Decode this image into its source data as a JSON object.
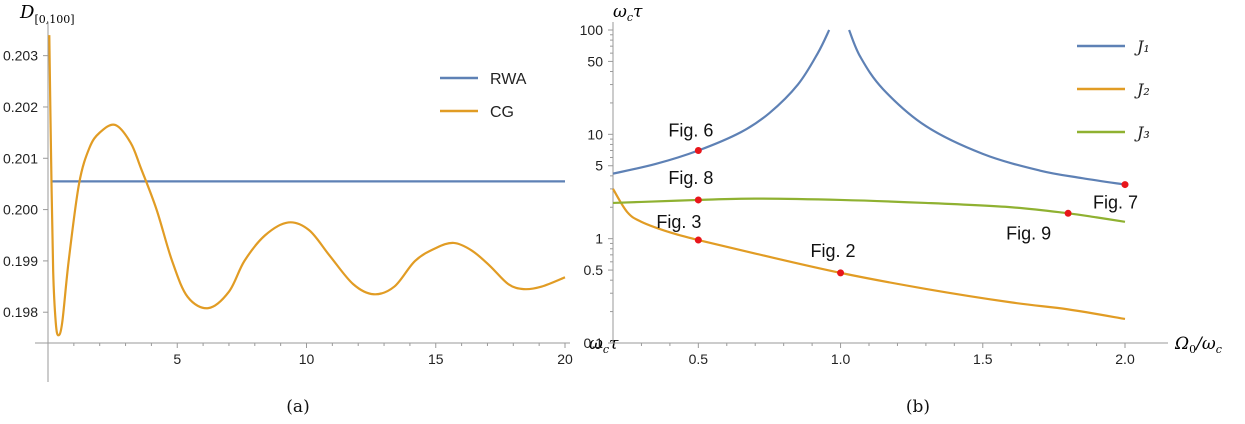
{
  "chart_data": [
    {
      "id": "a",
      "type": "line",
      "caption": "(a)",
      "ylabel_main": "D",
      "ylabel_sub": "[0,100]",
      "xlim": [
        0,
        20
      ],
      "ylim": [
        0.1974,
        0.2035
      ],
      "x_ticks": [
        5,
        10,
        15,
        20
      ],
      "x_tick_labels": [
        "5",
        "10",
        "15",
        "20"
      ],
      "y_ticks": [
        0.198,
        0.199,
        0.2,
        0.201,
        0.202,
        0.203
      ],
      "y_tick_labels": [
        "0.198",
        "0.199",
        "0.200",
        "0.201",
        "0.202",
        "0.203"
      ],
      "legend_position": "top-right",
      "series": [
        {
          "name": "RWA",
          "color": "#5e81b5",
          "points": [
            [
              0.15,
              0.20055
            ],
            [
              20,
              0.20055
            ]
          ]
        },
        {
          "name": "CG",
          "color": "#e19c24",
          "points": [
            [
              0.05,
              0.2034
            ],
            [
              0.12,
              0.201
            ],
            [
              0.2,
              0.1988
            ],
            [
              0.3,
              0.1978
            ],
            [
              0.4,
              0.19755
            ],
            [
              0.55,
              0.1978
            ],
            [
              0.8,
              0.199
            ],
            [
              1.2,
              0.2005
            ],
            [
              1.6,
              0.2012
            ],
            [
              2.0,
              0.2015
            ],
            [
              2.6,
              0.20165
            ],
            [
              3.2,
              0.2013
            ],
            [
              3.6,
              0.2008
            ],
            [
              4.2,
              0.2
            ],
            [
              4.8,
              0.199
            ],
            [
              5.4,
              0.1983
            ],
            [
              6.2,
              0.19808
            ],
            [
              7.0,
              0.1984
            ],
            [
              7.6,
              0.199
            ],
            [
              8.4,
              0.1995
            ],
            [
              9.3,
              0.19975
            ],
            [
              10.1,
              0.1996
            ],
            [
              10.9,
              0.1991
            ],
            [
              11.8,
              0.19855
            ],
            [
              12.6,
              0.19835
            ],
            [
              13.4,
              0.1985
            ],
            [
              14.2,
              0.199
            ],
            [
              15.0,
              0.19925
            ],
            [
              15.7,
              0.19935
            ],
            [
              16.4,
              0.1992
            ],
            [
              17.1,
              0.1989
            ],
            [
              17.8,
              0.19855
            ],
            [
              18.4,
              0.19845
            ],
            [
              19.1,
              0.1985
            ],
            [
              20.0,
              0.19868
            ]
          ]
        }
      ]
    },
    {
      "id": "b",
      "type": "line",
      "caption": "(b)",
      "ylabel_top": "ω_cτ",
      "ylabel_bottom": "ω_cτ",
      "xlabel": "Ω_0/ω_c",
      "yscale": "log",
      "xlim": [
        0.2,
        2.0
      ],
      "ylim": [
        0.1,
        100
      ],
      "x_ticks": [
        0.5,
        1.0,
        1.5,
        2.0
      ],
      "x_tick_labels": [
        "0.5",
        "1.0",
        "1.5",
        "2.0"
      ],
      "y_ticks": [
        0.1,
        0.5,
        1,
        5,
        10,
        50,
        100
      ],
      "y_tick_labels": [
        "0.1",
        "0.5",
        "1",
        "5",
        "10",
        "50",
        "100"
      ],
      "legend_position": "top-right",
      "series": [
        {
          "name": "J₁",
          "color": "#5e81b5",
          "segments": [
            [
              [
                0.2,
                4.2
              ],
              [
                0.35,
                5.2
              ],
              [
                0.5,
                7.0
              ],
              [
                0.65,
                10.5
              ],
              [
                0.75,
                16
              ],
              [
                0.85,
                30
              ],
              [
                0.92,
                60
              ],
              [
                0.96,
                100
              ]
            ],
            [
              [
                1.03,
                100
              ],
              [
                1.07,
                55
              ],
              [
                1.15,
                27
              ],
              [
                1.3,
                12
              ],
              [
                1.5,
                6.5
              ],
              [
                1.7,
                4.5
              ],
              [
                1.85,
                3.8
              ],
              [
                2.0,
                3.3
              ]
            ]
          ]
        },
        {
          "name": "J₂",
          "color": "#e19c24",
          "points": [
            [
              0.2,
              3.0
            ],
            [
              0.25,
              1.8
            ],
            [
              0.3,
              1.45
            ],
            [
              0.4,
              1.15
            ],
            [
              0.5,
              0.97
            ],
            [
              0.7,
              0.72
            ],
            [
              1.0,
              0.47
            ],
            [
              1.3,
              0.33
            ],
            [
              1.6,
              0.245
            ],
            [
              1.8,
              0.21
            ],
            [
              2.0,
              0.17
            ]
          ]
        },
        {
          "name": "J₃",
          "color": "#8fb131",
          "points": [
            [
              0.2,
              2.2
            ],
            [
              0.3,
              2.25
            ],
            [
              0.5,
              2.35
            ],
            [
              0.7,
              2.42
            ],
            [
              1.0,
              2.35
            ],
            [
              1.3,
              2.2
            ],
            [
              1.6,
              2.0
            ],
            [
              1.8,
              1.75
            ],
            [
              1.9,
              1.6
            ],
            [
              2.0,
              1.45
            ]
          ]
        }
      ],
      "annotations": [
        {
          "label": "Fig. 6",
          "x": 0.5,
          "y": 7.0
        },
        {
          "label": "Fig. 8",
          "x": 0.5,
          "y": 2.35
        },
        {
          "label": "Fig. 3",
          "x": 0.5,
          "y": 0.97
        },
        {
          "label": "Fig. 2",
          "x": 1.0,
          "y": 0.47
        },
        {
          "label": "Fig. 7",
          "x": 2.0,
          "y": 3.3
        },
        {
          "label": "Fig. 9",
          "x": 1.8,
          "y": 1.75
        }
      ]
    }
  ]
}
